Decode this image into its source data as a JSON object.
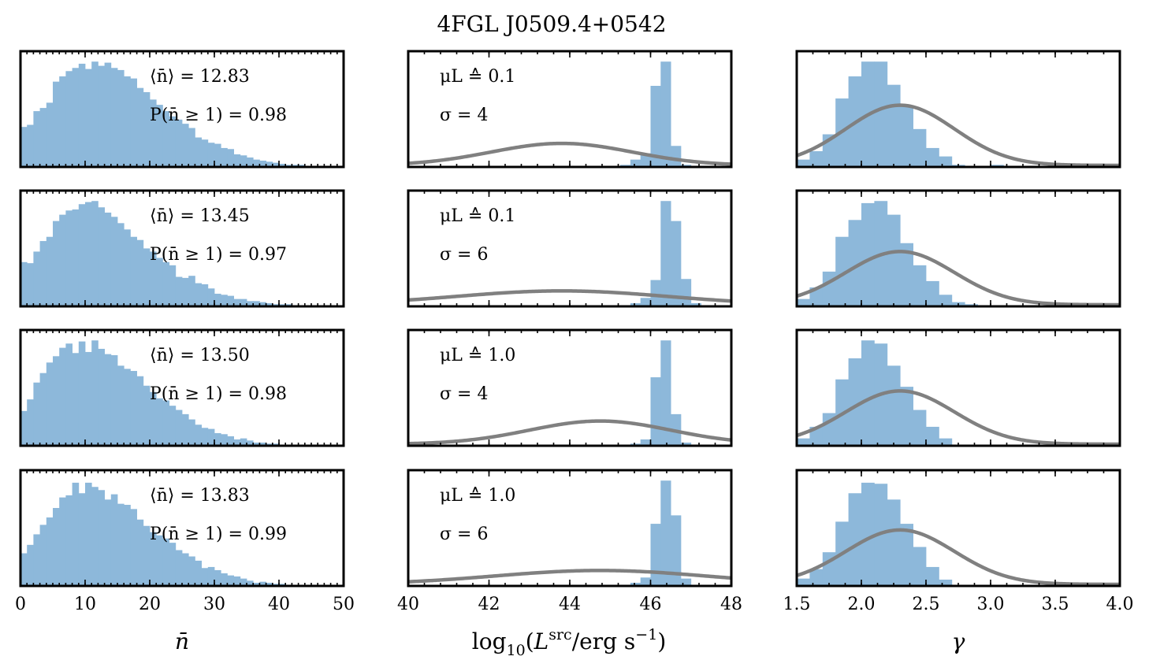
{
  "title": "4FGL J0509.4+0542",
  "chart_data": {
    "type": "histogram-grid",
    "rows": 4,
    "columns": [
      {
        "key": "nbar",
        "xlabel": "n̄",
        "xlim": [
          0,
          50
        ],
        "ticks": [
          0,
          10,
          20,
          30,
          40,
          50
        ],
        "tick_labels": [
          "0",
          "10",
          "20",
          "30",
          "40",
          "50"
        ],
        "minor_step": 1,
        "bin_width": 1,
        "bin_start": 0
      },
      {
        "key": "lum",
        "xlabel": "log10(Lsrc/erg s−1)",
        "xlabel_parts": {
          "pre": "log",
          "sub": "10",
          "mid1": "(",
          "L": "L",
          "sup": "src",
          "mid2": "/erg s",
          "exp": "−1",
          "post": ")"
        },
        "xlim": [
          40,
          48
        ],
        "ticks": [
          40,
          42,
          44,
          46,
          48
        ],
        "tick_labels": [
          "40",
          "42",
          "44",
          "46",
          "48"
        ],
        "minor_step": 0.4,
        "bin_width": 0.25,
        "bin_start": 40
      },
      {
        "key": "gamma",
        "xlabel": "γ",
        "xlim": [
          1.5,
          4.0
        ],
        "ticks": [
          1.5,
          2.0,
          2.5,
          3.0,
          3.5,
          4.0
        ],
        "tick_labels": [
          "1.5",
          "2.0",
          "2.5",
          "3.0",
          "3.5",
          "4.0"
        ],
        "minor_step": 0.125,
        "bin_width": 0.1,
        "bin_start": 1.5
      }
    ],
    "panels": [
      {
        "row": 0,
        "nbar": {
          "mean_label": "⟨n̄⟩ = 12.83",
          "prob_label": "P(n̄ ≥ 1) = 0.98",
          "mean": 12.83,
          "prob": 0.98,
          "counts": [
            0.38,
            0.4,
            0.53,
            0.56,
            0.61,
            0.81,
            0.86,
            0.91,
            0.94,
            0.98,
            0.93,
            1.0,
            0.96,
            0.99,
            0.94,
            0.92,
            0.86,
            0.84,
            0.75,
            0.71,
            0.64,
            0.59,
            0.53,
            0.48,
            0.45,
            0.41,
            0.37,
            0.28,
            0.26,
            0.23,
            0.22,
            0.18,
            0.17,
            0.12,
            0.11,
            0.09,
            0.07,
            0.06,
            0.05,
            0.04,
            0.03,
            0.02,
            0.02,
            0.02,
            0.01,
            0.01,
            0.01,
            0.0,
            0.0,
            0.0
          ]
        },
        "lum": {
          "mu_label": "μL ≙ 0.1",
          "sigma_label": "σ = 4",
          "mu": 0.1,
          "sigma": 4,
          "prior_peak_x": 43.8,
          "prior_height": 0.19,
          "prior_sigma": 1.75,
          "counts": [
            0,
            0,
            0,
            0,
            0,
            0,
            0,
            0,
            0,
            0,
            0,
            0,
            0,
            0,
            0,
            0,
            0,
            0,
            0,
            0.0,
            0.0,
            0.02,
            0.07,
            0.13,
            0.77,
            1.0,
            0.2,
            0.02,
            0.0,
            0.0,
            0.0,
            0.0
          ]
        },
        "gamma": {
          "counts": [
            0.07,
            0.15,
            0.31,
            0.65,
            0.86,
            1.0,
            1.0,
            0.78,
            0.58,
            0.36,
            0.18,
            0.1,
            0.02,
            0.01,
            0.0,
            0.02,
            0.0,
            0.0,
            0.0,
            0.0,
            0.0,
            0.0,
            0.0,
            0.0,
            0.0
          ],
          "prior_peak_x": 2.3,
          "prior_height": 0.52,
          "prior_sigma": 0.42
        }
      },
      {
        "row": 1,
        "nbar": {
          "mean_label": "⟨n̄⟩ = 13.45",
          "prob_label": "P(n̄ ≥ 1) = 0.97",
          "mean": 13.45,
          "prob": 0.97,
          "counts": [
            0.42,
            0.41,
            0.52,
            0.62,
            0.66,
            0.81,
            0.87,
            0.91,
            0.92,
            0.97,
            0.99,
            1.0,
            0.94,
            0.89,
            0.85,
            0.79,
            0.73,
            0.66,
            0.63,
            0.55,
            0.52,
            0.46,
            0.42,
            0.39,
            0.28,
            0.27,
            0.29,
            0.22,
            0.21,
            0.17,
            0.12,
            0.11,
            0.1,
            0.07,
            0.07,
            0.05,
            0.05,
            0.04,
            0.03,
            0.02,
            0.02,
            0.02,
            0.01,
            0.01,
            0.01,
            0.01,
            0.01,
            0.0,
            0.0,
            0.0
          ]
        },
        "lum": {
          "mu_label": "μL ≙ 0.1",
          "sigma_label": "σ = 6",
          "mu": 0.1,
          "sigma": 6,
          "prior_peak_x": 43.8,
          "prior_height": 0.12,
          "prior_sigma": 2.6,
          "counts": [
            0,
            0,
            0,
            0,
            0,
            0,
            0,
            0,
            0,
            0,
            0,
            0,
            0,
            0,
            0,
            0,
            0,
            0,
            0,
            0.0,
            0.0,
            0.0,
            0.03,
            0.08,
            0.25,
            1.0,
            0.81,
            0.26,
            0.03,
            0.0,
            0.0,
            0.0
          ]
        },
        "gamma": {
          "counts": [
            0.07,
            0.18,
            0.33,
            0.66,
            0.82,
            0.98,
            1.0,
            0.87,
            0.6,
            0.39,
            0.24,
            0.11,
            0.04,
            0.02,
            0.0,
            0.0,
            0.0,
            0.0,
            0.0,
            0.0,
            0.0,
            0.0,
            0.0,
            0.0,
            0.0
          ],
          "prior_peak_x": 2.3,
          "prior_height": 0.46,
          "prior_sigma": 0.42
        }
      },
      {
        "row": 2,
        "nbar": {
          "mean_label": "⟨n̄⟩ = 13.50",
          "prob_label": "P(n̄ ≥ 1) = 0.98",
          "mean": 13.5,
          "prob": 0.98,
          "counts": [
            0.33,
            0.44,
            0.6,
            0.69,
            0.79,
            0.85,
            0.93,
            0.97,
            0.88,
            0.99,
            0.89,
            1.0,
            0.92,
            0.87,
            0.86,
            0.76,
            0.73,
            0.71,
            0.66,
            0.57,
            0.51,
            0.45,
            0.43,
            0.38,
            0.34,
            0.3,
            0.25,
            0.2,
            0.17,
            0.16,
            0.12,
            0.11,
            0.09,
            0.06,
            0.07,
            0.05,
            0.03,
            0.03,
            0.02,
            0.02,
            0.01,
            0.01,
            0.01,
            0.01,
            0.0,
            0.01,
            0.0,
            0.0,
            0.0,
            0.0
          ]
        },
        "lum": {
          "mu_label": "μL ≙ 1.0",
          "sigma_label": "σ = 4",
          "mu": 1.0,
          "sigma": 4,
          "prior_peak_x": 44.75,
          "prior_height": 0.2,
          "prior_sigma": 1.75,
          "counts": [
            0,
            0,
            0,
            0,
            0,
            0,
            0,
            0,
            0,
            0,
            0,
            0,
            0,
            0,
            0,
            0,
            0,
            0,
            0,
            0.0,
            0.0,
            0.0,
            0.02,
            0.06,
            0.65,
            1.0,
            0.3,
            0.03,
            0.0,
            0.0,
            0.0,
            0.0
          ]
        },
        "gamma": {
          "counts": [
            0.07,
            0.18,
            0.31,
            0.63,
            0.83,
            1.0,
            0.97,
            0.76,
            0.56,
            0.34,
            0.18,
            0.07,
            0.0,
            0.0,
            0.0,
            0.0,
            0.0,
            0.0,
            0.0,
            0.0,
            0.0,
            0.0,
            0.0,
            0.0,
            0.0
          ],
          "prior_peak_x": 2.3,
          "prior_height": 0.46,
          "prior_sigma": 0.42
        }
      },
      {
        "row": 3,
        "nbar": {
          "mean_label": "⟨n̄⟩ = 13.83",
          "prob_label": "P(n̄ ≥ 1) = 0.99",
          "mean": 13.83,
          "prob": 0.99,
          "counts": [
            0.31,
            0.39,
            0.49,
            0.58,
            0.65,
            0.74,
            0.84,
            0.86,
            0.98,
            0.88,
            0.98,
            0.94,
            0.91,
            0.82,
            0.87,
            0.78,
            0.77,
            0.73,
            0.63,
            0.57,
            0.51,
            0.48,
            0.45,
            0.41,
            0.34,
            0.31,
            0.28,
            0.24,
            0.17,
            0.18,
            0.15,
            0.12,
            0.1,
            0.09,
            0.07,
            0.05,
            0.03,
            0.04,
            0.03,
            0.02,
            0.02,
            0.01,
            0.01,
            0.01,
            0.01,
            0.01,
            0.0,
            0.0,
            0.0,
            0.0
          ]
        },
        "lum": {
          "mu_label": "μL ≙ 1.0",
          "sigma_label": "σ = 6",
          "mu": 1.0,
          "sigma": 6,
          "prior_peak_x": 44.75,
          "prior_height": 0.12,
          "prior_sigma": 2.6,
          "counts": [
            0,
            0,
            0,
            0,
            0,
            0,
            0,
            0,
            0,
            0,
            0,
            0,
            0,
            0,
            0,
            0,
            0,
            0,
            0,
            0.0,
            0.0,
            0.0,
            0.03,
            0.08,
            0.59,
            1.0,
            0.67,
            0.07,
            0.0,
            0.0,
            0.0,
            0.0
          ]
        },
        "gamma": {
          "counts": [
            0.07,
            0.16,
            0.32,
            0.61,
            0.88,
            0.98,
            0.97,
            0.82,
            0.59,
            0.37,
            0.18,
            0.06,
            0.01,
            0.0,
            0.0,
            0.0,
            0.0,
            0.0,
            0.0,
            0.0,
            0.0,
            0.0,
            0.0,
            0.0,
            0.0
          ],
          "prior_peak_x": 2.3,
          "prior_height": 0.47,
          "prior_sigma": 0.42
        }
      }
    ]
  }
}
